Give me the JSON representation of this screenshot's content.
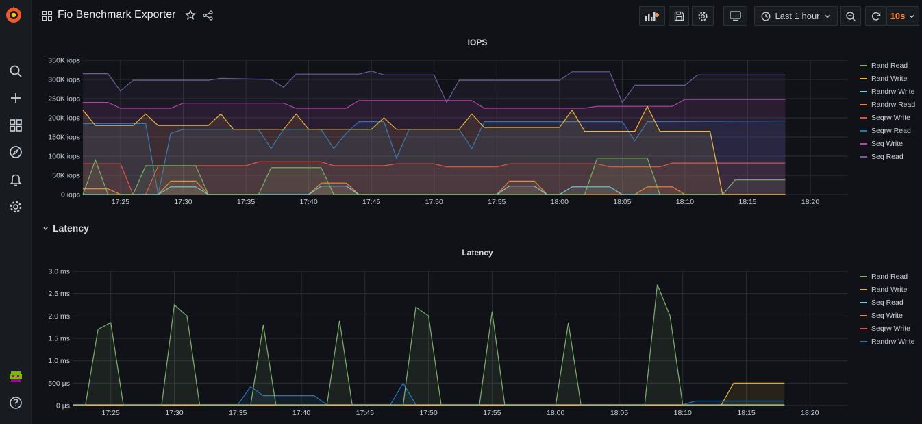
{
  "header": {
    "title": "Fio Benchmark Exporter",
    "time_range": "Last 1 hour",
    "refresh_interval": "10s"
  },
  "sidebar": {
    "items": [
      "search-icon",
      "plus-icon",
      "dashboards-icon",
      "explore-icon",
      "alerting-icon",
      "settings-icon"
    ],
    "bottom": [
      "avatar",
      "help-icon"
    ]
  },
  "row": {
    "title": "Latency"
  },
  "colors": {
    "green": "#7eb26d",
    "yellow": "#eab839",
    "lightblue": "#6ed0e0",
    "orange": "#ef843c",
    "red": "#e24d42",
    "blue": "#1f78c1",
    "pink": "#ba43a9",
    "purple": "#705da0"
  },
  "chart_data": [
    {
      "type": "area",
      "title": "IOPS",
      "ylim": [
        0,
        350000
      ],
      "yticks": [
        "0 iops",
        "50K iops",
        "100K iops",
        "150K iops",
        "200K iops",
        "250K iops",
        "300K iops",
        "350K iops"
      ],
      "xticks": [
        "17:25",
        "17:30",
        "17:35",
        "17:40",
        "17:45",
        "17:50",
        "17:55",
        "18:00",
        "18:05",
        "18:10",
        "18:15",
        "18:20"
      ],
      "xrange": [
        "17:22",
        "18:23"
      ],
      "grid": true,
      "legend_placement": "right",
      "series": [
        {
          "name": "Rand Read",
          "color": "#7eb26d",
          "points": [
            [
              "17:22",
              0
            ],
            [
              "17:23",
              90000
            ],
            [
              "17:24",
              0
            ],
            [
              "17:26",
              0
            ],
            [
              "17:27",
              75000
            ],
            [
              "17:31",
              75000
            ],
            [
              "17:32",
              0
            ],
            [
              "17:36",
              0
            ],
            [
              "17:37",
              70000
            ],
            [
              "17:41",
              70000
            ],
            [
              "17:42",
              0
            ],
            [
              "18:02",
              0
            ],
            [
              "18:03",
              95000
            ],
            [
              "18:07",
              95000
            ],
            [
              "18:08",
              0
            ],
            [
              "18:13",
              0
            ],
            [
              "18:14",
              38000
            ],
            [
              "18:18",
              38000
            ]
          ]
        },
        {
          "name": "Rand Write",
          "color": "#eab839",
          "points": [
            [
              "17:22",
              220000
            ],
            [
              "17:23",
              180000
            ],
            [
              "17:26",
              180000
            ],
            [
              "17:27",
              210000
            ],
            [
              "17:28",
              180000
            ],
            [
              "17:32",
              180000
            ],
            [
              "17:33",
              210000
            ],
            [
              "17:34",
              170000
            ],
            [
              "17:38",
              170000
            ],
            [
              "17:39",
              210000
            ],
            [
              "17:40",
              170000
            ],
            [
              "17:45",
              170000
            ],
            [
              "17:46",
              200000
            ],
            [
              "17:47",
              170000
            ],
            [
              "17:52",
              170000
            ],
            [
              "17:53",
              210000
            ],
            [
              "17:54",
              175000
            ],
            [
              "18:00",
              175000
            ],
            [
              "18:01",
              220000
            ],
            [
              "18:02",
              165000
            ],
            [
              "18:06",
              165000
            ],
            [
              "18:07",
              230000
            ],
            [
              "18:08",
              165000
            ],
            [
              "18:12",
              165000
            ],
            [
              "18:13",
              0
            ],
            [
              "18:18",
              0
            ]
          ]
        },
        {
          "name": "Randrw Write",
          "color": "#6ed0e0",
          "points": [
            [
              "17:22",
              0
            ],
            [
              "17:28",
              0
            ],
            [
              "17:29",
              20000
            ],
            [
              "17:31",
              20000
            ],
            [
              "17:32",
              0
            ],
            [
              "17:40",
              0
            ],
            [
              "17:41",
              22000
            ],
            [
              "17:43",
              22000
            ],
            [
              "17:44",
              0
            ],
            [
              "17:55",
              0
            ],
            [
              "17:56",
              22000
            ],
            [
              "17:58",
              22000
            ],
            [
              "17:59",
              0
            ],
            [
              "18:00",
              0
            ],
            [
              "18:01",
              20000
            ],
            [
              "18:04",
              20000
            ],
            [
              "18:05",
              0
            ],
            [
              "18:18",
              0
            ]
          ]
        },
        {
          "name": "Randrw Read",
          "color": "#ef843c",
          "points": [
            [
              "17:22",
              15000
            ],
            [
              "17:24",
              15000
            ],
            [
              "17:25",
              0
            ],
            [
              "17:28",
              0
            ],
            [
              "17:29",
              35000
            ],
            [
              "17:31",
              35000
            ],
            [
              "17:32",
              0
            ],
            [
              "17:40",
              0
            ],
            [
              "17:41",
              30000
            ],
            [
              "17:43",
              30000
            ],
            [
              "17:44",
              0
            ],
            [
              "17:55",
              0
            ],
            [
              "17:56",
              35000
            ],
            [
              "17:58",
              35000
            ],
            [
              "17:59",
              0
            ],
            [
              "18:06",
              0
            ],
            [
              "18:07",
              20000
            ],
            [
              "18:09",
              20000
            ],
            [
              "18:10",
              0
            ],
            [
              "18:18",
              0
            ]
          ]
        },
        {
          "name": "Seqrw Write",
          "color": "#e24d42",
          "points": [
            [
              "17:22",
              80000
            ],
            [
              "17:25",
              80000
            ],
            [
              "17:26",
              0
            ],
            [
              "17:27",
              0
            ],
            [
              "17:28",
              75000
            ],
            [
              "17:35",
              75000
            ],
            [
              "17:36",
              85000
            ],
            [
              "17:41",
              85000
            ],
            [
              "17:42",
              75000
            ],
            [
              "17:46",
              75000
            ],
            [
              "17:47",
              80000
            ],
            [
              "17:50",
              80000
            ],
            [
              "17:51",
              72000
            ],
            [
              "17:55",
              72000
            ],
            [
              "17:56",
              80000
            ],
            [
              "18:03",
              80000
            ],
            [
              "18:04",
              72000
            ],
            [
              "18:08",
              72000
            ],
            [
              "18:09",
              82000
            ],
            [
              "18:18",
              82000
            ]
          ]
        },
        {
          "name": "Seqrw Read",
          "color": "#1f78c1",
          "points": [
            [
              "17:22",
              185000
            ],
            [
              "17:27",
              185000
            ],
            [
              "17:28",
              0
            ],
            [
              "17:29",
              160000
            ],
            [
              "17:30",
              170000
            ],
            [
              "17:36",
              170000
            ],
            [
              "17:37",
              120000
            ],
            [
              "17:38",
              170000
            ],
            [
              "17:41",
              170000
            ],
            [
              "17:42",
              120000
            ],
            [
              "17:43",
              160000
            ],
            [
              "17:44",
              190000
            ],
            [
              "17:46",
              190000
            ],
            [
              "17:47",
              95000
            ],
            [
              "17:48",
              170000
            ],
            [
              "17:52",
              170000
            ],
            [
              "17:53",
              120000
            ],
            [
              "17:54",
              190000
            ],
            [
              "18:05",
              190000
            ],
            [
              "18:06",
              140000
            ],
            [
              "18:07",
              190000
            ],
            [
              "18:18",
              192000
            ]
          ]
        },
        {
          "name": "Seq Write",
          "color": "#ba43a9",
          "points": [
            [
              "17:22",
              240000
            ],
            [
              "17:24",
              240000
            ],
            [
              "17:25",
              225000
            ],
            [
              "17:29",
              225000
            ],
            [
              "17:30",
              238000
            ],
            [
              "17:38",
              238000
            ],
            [
              "17:39",
              225000
            ],
            [
              "17:43",
              225000
            ],
            [
              "17:44",
              245000
            ],
            [
              "17:53",
              245000
            ],
            [
              "17:54",
              225000
            ],
            [
              "18:02",
              225000
            ],
            [
              "18:03",
              230000
            ],
            [
              "18:09",
              230000
            ],
            [
              "18:10",
              248000
            ],
            [
              "18:18",
              248000
            ]
          ]
        },
        {
          "name": "Seq Read",
          "color": "#705da0",
          "points": [
            [
              "17:22",
              315000
            ],
            [
              "17:24",
              315000
            ],
            [
              "17:25",
              270000
            ],
            [
              "17:26",
              298000
            ],
            [
              "17:32",
              298000
            ],
            [
              "17:33",
              303000
            ],
            [
              "17:37",
              300000
            ],
            [
              "17:38",
              280000
            ],
            [
              "17:39",
              314000
            ],
            [
              "17:44",
              314000
            ],
            [
              "17:45",
              322000
            ],
            [
              "17:46",
              312000
            ],
            [
              "17:50",
              312000
            ],
            [
              "17:51",
              240000
            ],
            [
              "17:52",
              298000
            ],
            [
              "18:00",
              298000
            ],
            [
              "18:01",
              320000
            ],
            [
              "18:04",
              320000
            ],
            [
              "18:05",
              240000
            ],
            [
              "18:06",
              285000
            ],
            [
              "18:10",
              285000
            ],
            [
              "18:11",
              312000
            ],
            [
              "18:18",
              312000
            ]
          ]
        }
      ]
    },
    {
      "type": "area",
      "title": "Latency",
      "ylim": [
        0,
        3.0
      ],
      "yticks": [
        "0 µs",
        "500 µs",
        "1.0 ms",
        "1.5 ms",
        "2.0 ms",
        "2.5 ms",
        "3.0 ms"
      ],
      "xticks": [
        "17:25",
        "17:30",
        "17:35",
        "17:40",
        "17:45",
        "17:50",
        "17:55",
        "18:00",
        "18:05",
        "18:10",
        "18:15",
        "18:20"
      ],
      "xrange": [
        "17:22",
        "18:23"
      ],
      "grid": true,
      "legend_placement": "right",
      "series": [
        {
          "name": "Rand Read",
          "color": "#7eb26d",
          "points": [
            [
              "17:22",
              0
            ],
            [
              "17:23",
              0
            ],
            [
              "17:24",
              1.7
            ],
            [
              "17:25",
              1.85
            ],
            [
              "17:26",
              0
            ],
            [
              "17:29",
              0
            ],
            [
              "17:30",
              2.25
            ],
            [
              "17:31",
              2.0
            ],
            [
              "17:32",
              0
            ],
            [
              "17:36",
              0
            ],
            [
              "17:37",
              1.8
            ],
            [
              "17:38",
              0
            ],
            [
              "17:42",
              0
            ],
            [
              "17:43",
              1.9
            ],
            [
              "17:44",
              0
            ],
            [
              "17:48",
              0
            ],
            [
              "17:49",
              2.2
            ],
            [
              "17:50",
              2.0
            ],
            [
              "17:51",
              0
            ],
            [
              "17:54",
              0
            ],
            [
              "17:55",
              2.1
            ],
            [
              "17:56",
              0
            ],
            [
              "18:00",
              0
            ],
            [
              "18:01",
              1.85
            ],
            [
              "18:02",
              0
            ],
            [
              "18:07",
              0
            ],
            [
              "18:08",
              2.7
            ],
            [
              "18:09",
              2.0
            ],
            [
              "18:10",
              0
            ],
            [
              "18:18",
              0
            ]
          ]
        },
        {
          "name": "Rand Write",
          "color": "#eab839",
          "points": [
            [
              "17:22",
              0
            ],
            [
              "18:13",
              0
            ],
            [
              "18:14",
              0.5
            ],
            [
              "18:18",
              0.5
            ]
          ]
        },
        {
          "name": "Seq Read",
          "color": "#6ed0e0",
          "points": [
            [
              "17:22",
              0.01
            ],
            [
              "18:18",
              0.01
            ]
          ]
        },
        {
          "name": "Seq Write",
          "color": "#ef843c",
          "points": [
            [
              "17:22",
              0.01
            ],
            [
              "18:18",
              0.01
            ]
          ]
        },
        {
          "name": "Seqrw Write",
          "color": "#e24d42",
          "points": [
            [
              "17:22",
              0.02
            ],
            [
              "18:18",
              0.02
            ]
          ]
        },
        {
          "name": "Randrw Write",
          "color": "#1f78c1",
          "points": [
            [
              "17:22",
              0.02
            ],
            [
              "17:35",
              0.02
            ],
            [
              "17:36",
              0.42
            ],
            [
              "17:37",
              0.22
            ],
            [
              "17:41",
              0.22
            ],
            [
              "17:42",
              0.02
            ],
            [
              "17:47",
              0.02
            ],
            [
              "17:48",
              0.5
            ],
            [
              "17:49",
              0.02
            ],
            [
              "18:10",
              0.02
            ],
            [
              "18:11",
              0.1
            ],
            [
              "18:18",
              0.1
            ]
          ]
        }
      ]
    }
  ]
}
